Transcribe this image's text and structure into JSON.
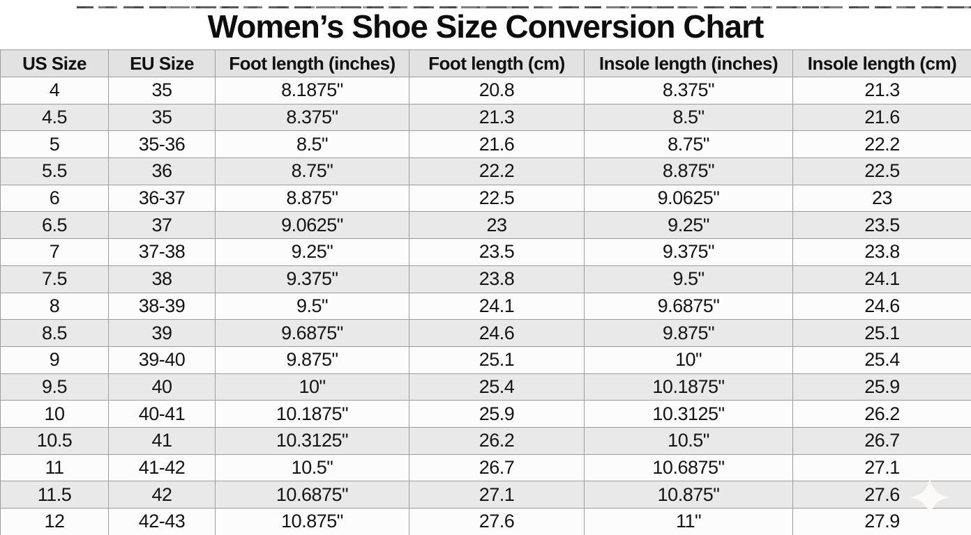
{
  "title": "Women’s Shoe Size Conversion Chart",
  "chart_data": {
    "type": "table",
    "title": "Women’s Shoe Size Conversion Chart",
    "columns": [
      "US Size",
      "EU Size",
      "Foot length (inches)",
      "Foot length (cm)",
      "Insole length (inches)",
      "Insole length (cm)"
    ],
    "rows": [
      [
        "4",
        "35",
        "8.1875\"",
        "20.8",
        "8.375\"",
        "21.3"
      ],
      [
        "4.5",
        "35",
        "8.375\"",
        "21.3",
        "8.5\"",
        "21.6"
      ],
      [
        "5",
        "35-36",
        "8.5\"",
        "21.6",
        "8.75\"",
        "22.2"
      ],
      [
        "5.5",
        "36",
        "8.75\"",
        "22.2",
        "8.875\"",
        "22.5"
      ],
      [
        "6",
        "36-37",
        "8.875\"",
        "22.5",
        "9.0625\"",
        "23"
      ],
      [
        "6.5",
        "37",
        "9.0625\"",
        "23",
        "9.25\"",
        "23.5"
      ],
      [
        "7",
        "37-38",
        "9.25\"",
        "23.5",
        "9.375\"",
        "23.8"
      ],
      [
        "7.5",
        "38",
        "9.375\"",
        "23.8",
        "9.5\"",
        "24.1"
      ],
      [
        "8",
        "38-39",
        "9.5\"",
        "24.1",
        "9.6875\"",
        "24.6"
      ],
      [
        "8.5",
        "39",
        "9.6875\"",
        "24.6",
        "9.875\"",
        "25.1"
      ],
      [
        "9",
        "39-40",
        "9.875\"",
        "25.1",
        "10\"",
        "25.4"
      ],
      [
        "9.5",
        "40",
        "10\"",
        "25.4",
        "10.1875\"",
        "25.9"
      ],
      [
        "10",
        "40-41",
        "10.1875\"",
        "25.9",
        "10.3125\"",
        "26.2"
      ],
      [
        "10.5",
        "41",
        "10.3125\"",
        "26.2",
        "10.5\"",
        "26.7"
      ],
      [
        "11",
        "41-42",
        "10.5\"",
        "26.7",
        "10.6875\"",
        "27.1"
      ],
      [
        "11.5",
        "42",
        "10.6875\"",
        "27.1",
        "10.875\"",
        "27.6"
      ],
      [
        "12",
        "42-43",
        "10.875\"",
        "27.6",
        "11\"",
        "27.9"
      ]
    ]
  },
  "colors": {
    "header_bg": "#e2e2e2",
    "row_even_bg": "#e9e9e9",
    "row_odd_bg": "#fcfcfc",
    "border": "#9c9c9c",
    "text": "#141414",
    "bottom_bar": "#4f4f4f"
  },
  "watermark": {
    "icon": "sparkle-icon"
  }
}
